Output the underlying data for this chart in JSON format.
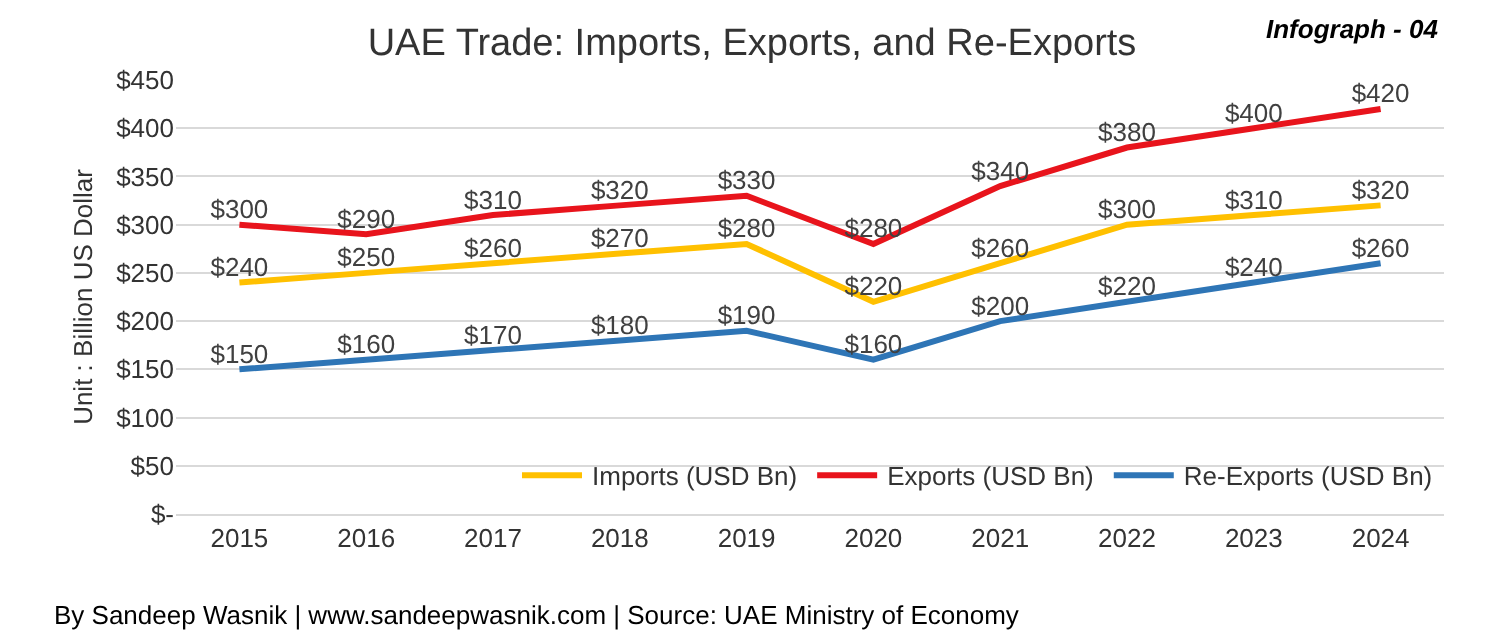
{
  "chart_data": {
    "type": "line",
    "title": "UAE Trade: Imports, Exports, and Re-Exports",
    "ylabel": "Unit : Billion US Dollar",
    "annotations": [
      "Infograph - 04",
      "By Sandeep Wasnik | www.sandeepwasnik.com | Source: UAE Ministry of Economy"
    ],
    "categories": [
      "2015",
      "2016",
      "2017",
      "2018",
      "2019",
      "2020",
      "2021",
      "2022",
      "2023",
      "2024"
    ],
    "series": [
      {
        "name": "Imports (USD Bn)",
        "color": "#ffc000",
        "values": [
          240,
          250,
          260,
          270,
          280,
          220,
          260,
          300,
          310,
          320
        ],
        "value_labels": [
          "$240",
          "$250",
          "$260",
          "$270",
          "$280",
          "$220",
          "$260",
          "$300",
          "$310",
          "$320"
        ]
      },
      {
        "name": "Exports (USD Bn)",
        "color": "#e8141c",
        "values": [
          300,
          290,
          310,
          320,
          330,
          280,
          340,
          380,
          400,
          420
        ],
        "value_labels": [
          "$300",
          "$290",
          "$310",
          "$320",
          "$330",
          "$280",
          "$340",
          "$380",
          "$400",
          "$420"
        ]
      },
      {
        "name": "Re-Exports (USD Bn)",
        "color": "#2e75b6",
        "values": [
          150,
          160,
          170,
          180,
          190,
          160,
          200,
          220,
          240,
          260
        ],
        "value_labels": [
          "$150",
          "$160",
          "$170",
          "$180",
          "$190",
          "$160",
          "$200",
          "$220",
          "$240",
          "$260"
        ]
      }
    ],
    "ylim": [
      0,
      450
    ],
    "yticks": [
      {
        "value": 0,
        "label": "$-"
      },
      {
        "value": 50,
        "label": "$50"
      },
      {
        "value": 100,
        "label": "$100"
      },
      {
        "value": 150,
        "label": "$150"
      },
      {
        "value": 200,
        "label": "$200"
      },
      {
        "value": 250,
        "label": "$250"
      },
      {
        "value": 300,
        "label": "$300"
      },
      {
        "value": 350,
        "label": "$350"
      },
      {
        "value": 400,
        "label": "$400"
      },
      {
        "value": 450,
        "label": "$450"
      }
    ],
    "grid": "y",
    "legend": "bottom right",
    "marker": "none",
    "line_style": "solid"
  }
}
